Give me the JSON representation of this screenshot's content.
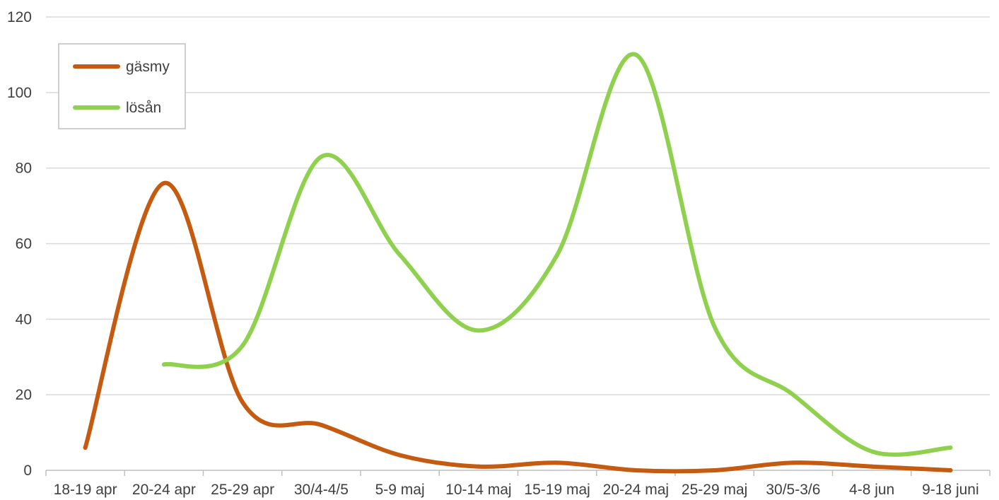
{
  "chart_data": {
    "type": "line",
    "title": "",
    "xlabel": "",
    "ylabel": "",
    "categories": [
      "18-19 apr",
      "20-24 apr",
      "25-29 apr",
      "30/4-4/5",
      "5-9 maj",
      "10-14 maj",
      "15-19 maj",
      "20-24 maj",
      "25-29 maj",
      "30/5-3/6",
      "4-8 jun",
      "9-18 juni"
    ],
    "ylim": [
      0,
      120
    ],
    "yticks": [
      "0",
      "20",
      "40",
      "60",
      "80",
      "100",
      "120"
    ],
    "grid": true,
    "legend_position": "top-left",
    "smooth": true,
    "series": [
      {
        "name": "gäsmy",
        "color": "#c55a11",
        "values": [
          6,
          76,
          18,
          12,
          4,
          1,
          2,
          0,
          0,
          2,
          1,
          0
        ]
      },
      {
        "name": "lösån",
        "color": "#8fd14f",
        "values": [
          null,
          28,
          33,
          83,
          57,
          37,
          57,
          110,
          38,
          20,
          5,
          6
        ]
      }
    ]
  }
}
